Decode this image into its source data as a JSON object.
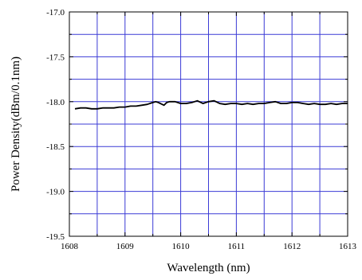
{
  "chart_data": {
    "type": "line",
    "title": "",
    "xlabel": "Wavelength (nm)",
    "ylabel": "Power Density(dBm/0.1nm)",
    "xlim": [
      1608,
      1613
    ],
    "ylim": [
      -19.5,
      -17.0
    ],
    "x_ticks": [
      1608,
      1609,
      1610,
      1611,
      1612,
      1613
    ],
    "x_tick_labels": [
      "1608",
      "1609",
      "1610",
      "1611",
      "1612",
      "1613"
    ],
    "y_ticks": [
      -17.0,
      -17.5,
      -18.0,
      -18.5,
      -19.0,
      -19.5
    ],
    "y_tick_labels": [
      "-17.0",
      "-17.5",
      "-18.0",
      "-18.5",
      "-19.0",
      "-19.5"
    ],
    "x_grid_step": 0.5,
    "y_grid_step": 0.25,
    "grid": true,
    "grid_color": "#3b3bd6",
    "line_color": "#000000",
    "series": [
      {
        "x": [
          1608.1,
          1608.2,
          1608.3,
          1608.4,
          1608.5,
          1608.6,
          1608.7,
          1608.8,
          1608.9,
          1609.0,
          1609.1,
          1609.2,
          1609.3,
          1609.4,
          1609.5,
          1609.55,
          1609.6,
          1609.7,
          1609.75,
          1609.8,
          1609.9,
          1610.0,
          1610.1,
          1610.2,
          1610.3,
          1610.4,
          1610.5,
          1610.6,
          1610.7,
          1610.8,
          1610.9,
          1611.0,
          1611.1,
          1611.2,
          1611.3,
          1611.4,
          1611.5,
          1611.6,
          1611.7,
          1611.8,
          1611.9,
          1612.0,
          1612.1,
          1612.2,
          1612.3,
          1612.4,
          1612.5,
          1612.6,
          1612.7,
          1612.8,
          1612.9,
          1613.0
        ],
        "y": [
          -18.08,
          -18.07,
          -18.07,
          -18.08,
          -18.08,
          -18.07,
          -18.07,
          -18.07,
          -18.06,
          -18.06,
          -18.05,
          -18.05,
          -18.04,
          -18.03,
          -18.01,
          -18.0,
          -18.01,
          -18.04,
          -18.01,
          -18.0,
          -18.0,
          -18.02,
          -18.02,
          -18.01,
          -17.99,
          -18.02,
          -18.0,
          -17.99,
          -18.02,
          -18.03,
          -18.02,
          -18.02,
          -18.03,
          -18.02,
          -18.03,
          -18.02,
          -18.02,
          -18.01,
          -18.0,
          -18.02,
          -18.02,
          -18.01,
          -18.01,
          -18.02,
          -18.03,
          -18.02,
          -18.03,
          -18.03,
          -18.02,
          -18.03,
          -18.02,
          -18.02
        ]
      }
    ]
  }
}
